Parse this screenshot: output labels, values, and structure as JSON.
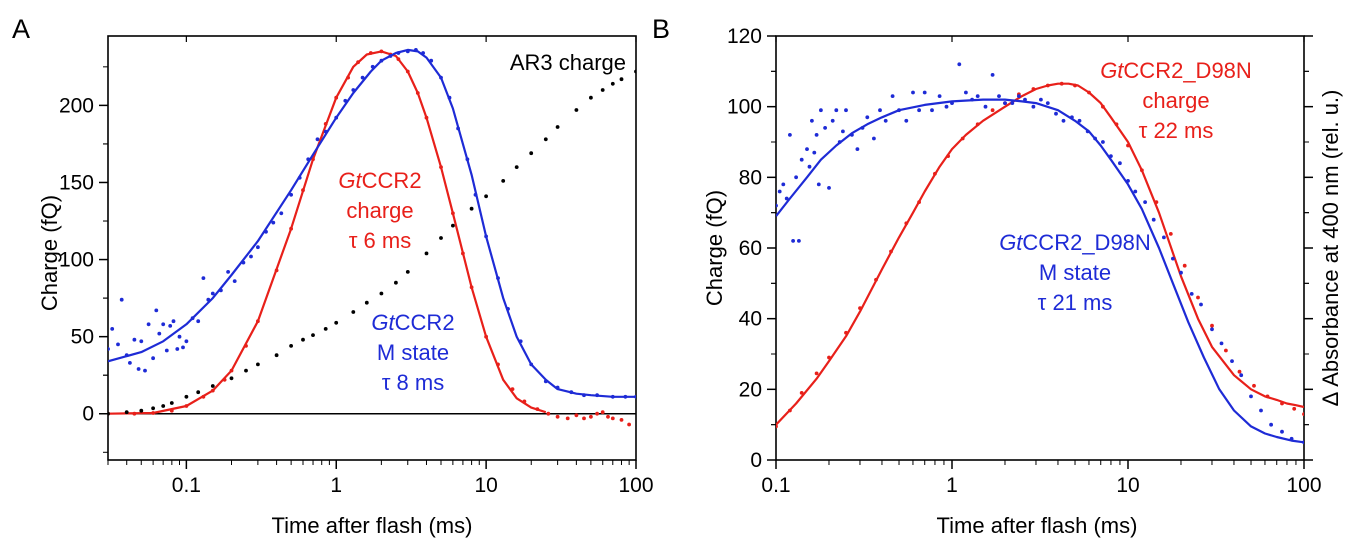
{
  "chart_data": [
    {
      "panel": "A",
      "type": "scatter",
      "xscale": "log",
      "xlim": [
        0.03,
        100
      ],
      "ylim": [
        -30,
        245
      ],
      "xlabel": "Time after flash (ms)",
      "ylabel": "Charge (fQ)",
      "xticks": [
        0.1,
        1,
        10,
        100
      ],
      "xtick_labels": [
        "0.1",
        "1",
        "10",
        "100"
      ],
      "yticks": [
        0,
        50,
        100,
        150,
        200
      ],
      "ytick_labels": [
        "0",
        "50",
        "100",
        "150",
        "200"
      ],
      "grid": false,
      "zero_line": true,
      "annotations": [
        {
          "lines": [
            {
              "italic": "Gt",
              "text": "CCR2"
            },
            {
              "text": "charge"
            },
            {
              "text": "τ 6 ms"
            }
          ],
          "color": "#e8201a"
        },
        {
          "lines": [
            {
              "italic": "Gt",
              "text": "CCR2"
            },
            {
              "text": "M state"
            },
            {
              "text": "τ 8 ms"
            }
          ],
          "color": "#1e2bd6"
        },
        {
          "lines": [
            {
              "text": "AR3 charge"
            }
          ],
          "color": "#000000"
        }
      ],
      "series": [
        {
          "color": "#e8201a",
          "fit": {
            "x": [
              0.03,
              0.06,
              0.1,
              0.15,
              0.2,
              0.3,
              0.5,
              0.7,
              1.0,
              1.3,
              1.6,
              2.0,
              2.5,
              3.0,
              3.5,
              4.0,
              5.0,
              6.0,
              8.0,
              10.0,
              13.0,
              16.0,
              20.0,
              25.0
            ],
            "y": [
              0,
              0.5,
              5,
              15,
              28,
              60,
              120,
              165,
              205,
              225,
              233,
              235,
              232,
              222,
              208,
              192,
              160,
              130,
              82,
              50,
              22,
              10,
              4,
              1
            ]
          },
          "points": {
            "x": [
              0.03,
              0.045,
              0.06,
              0.08,
              0.1,
              0.13,
              0.15,
              0.18,
              0.2,
              0.25,
              0.3,
              0.4,
              0.5,
              0.6,
              0.7,
              0.85,
              1.0,
              1.2,
              1.4,
              1.7,
              2.0,
              2.3,
              2.6,
              3.0,
              3.5,
              4.0,
              5.0,
              6.0,
              7.0,
              8.0,
              10.0,
              12.0,
              15.0,
              18.0,
              22.0,
              26.0,
              30.0,
              35.0,
              40.0,
              45.0,
              50.0,
              55.0,
              60.0,
              65.0,
              70.0,
              80.0,
              90.0
            ],
            "y": [
              0,
              0,
              0.5,
              2,
              5,
              11,
              15,
              22,
              28,
              44,
              60,
              93,
              120,
              145,
              165,
              188,
              205,
              218,
              228,
              234,
              235,
              233,
              230,
              222,
              208,
              192,
              160,
              130,
              104,
              82,
              50,
              32,
              16,
              8,
              3,
              0,
              -2,
              -3,
              -1,
              -3,
              -2,
              0,
              1,
              -2,
              -3,
              -4,
              -7
            ]
          }
        },
        {
          "color": "#1e2bd6",
          "fit": {
            "x": [
              0.03,
              0.05,
              0.07,
              0.1,
              0.15,
              0.2,
              0.3,
              0.5,
              0.7,
              1.0,
              1.3,
              1.7,
              2.0,
              2.5,
              3.0,
              3.5,
              4.0,
              5.0,
              6.0,
              8.0,
              10.0,
              13.0,
              16.0,
              20.0,
              25.0,
              30.0,
              40.0,
              50.0,
              70.0,
              100.0
            ],
            "y": [
              34,
              40,
              47,
              58,
              75,
              90,
              112,
              145,
              168,
              192,
              208,
              222,
              229,
              234,
              236,
              235,
              231,
              218,
              198,
              155,
              115,
              75,
              50,
              32,
              22,
              16,
              13,
              12,
              11,
              11
            ]
          },
          "points": {
            "x": [
              0.03,
              0.032,
              0.035,
              0.037,
              0.04,
              0.042,
              0.045,
              0.048,
              0.05,
              0.053,
              0.056,
              0.06,
              0.063,
              0.066,
              0.07,
              0.074,
              0.078,
              0.082,
              0.087,
              0.09,
              0.095,
              0.1,
              0.11,
              0.12,
              0.13,
              0.14,
              0.15,
              0.17,
              0.19,
              0.21,
              0.24,
              0.27,
              0.3,
              0.34,
              0.38,
              0.43,
              0.5,
              0.57,
              0.65,
              0.75,
              0.85,
              1.0,
              1.15,
              1.3,
              1.5,
              1.75,
              2.0,
              2.3,
              2.6,
              3.0,
              3.4,
              3.8,
              4.3,
              5.0,
              5.7,
              6.5,
              7.5,
              8.5,
              10.0,
              12.0,
              14.0,
              17.0,
              20.0,
              25.0,
              30.0,
              37.0,
              45.0,
              55.0,
              70.0,
              85.0,
              100.0
            ],
            "y": [
              42,
              55,
              45,
              74,
              38,
              33,
              48,
              29,
              47,
              28,
              58,
              36,
              67,
              52,
              58,
              41,
              57,
              60,
              42,
              50,
              43,
              47,
              62,
              60,
              88,
              74,
              78,
              80,
              92,
              86,
              98,
              102,
              108,
              118,
              124,
              130,
              142,
              153,
              165,
              178,
              183,
              192,
              203,
              210,
              218,
              225,
              229,
              232,
              234,
              235,
              236,
              234,
              229,
              218,
              205,
              185,
              165,
              142,
              115,
              88,
              68,
              47,
              32,
              21,
              17,
              14,
              12,
              12,
              11,
              11,
              11
            ]
          }
        },
        {
          "color": "#000000",
          "points": {
            "x": [
              0.03,
              0.04,
              0.05,
              0.06,
              0.07,
              0.08,
              0.1,
              0.12,
              0.15,
              0.2,
              0.25,
              0.3,
              0.4,
              0.5,
              0.6,
              0.7,
              0.85,
              1.0,
              1.3,
              1.6,
              2.0,
              2.5,
              3.0,
              4.0,
              5.0,
              6.0,
              8.0,
              10.0,
              13.0,
              16.0,
              20.0,
              25.0,
              30.0,
              40.0,
              50.0,
              60.0,
              70.0,
              80.0,
              100.0
            ],
            "y": [
              0,
              1,
              2,
              3.5,
              5,
              7,
              11,
              14,
              18,
              23,
              28,
              32,
              38,
              44,
              48,
              51,
              55,
              59,
              66,
              72,
              78,
              85,
              92,
              104,
              114,
              122,
              133,
              141,
              151,
              160,
              169,
              178,
              186,
              197,
              205,
              210,
              214,
              217,
              222
            ]
          }
        }
      ]
    },
    {
      "panel": "B",
      "type": "scatter",
      "xscale": "log",
      "xlim": [
        0.1,
        100
      ],
      "ylim": [
        0,
        120
      ],
      "xlabel": "Time after flash (ms)",
      "ylabel": "Charge (fQ)",
      "ylabel_right": "Δ Absorbance at 400 nm (rel. u.)",
      "xticks": [
        0.1,
        1,
        10,
        100
      ],
      "xtick_labels": [
        "0.1",
        "1",
        "10",
        "100"
      ],
      "yticks": [
        0,
        20,
        40,
        60,
        80,
        100,
        120
      ],
      "ytick_labels": [
        "0",
        "20",
        "40",
        "60",
        "80",
        "100",
        "120"
      ],
      "grid": false,
      "annotations": [
        {
          "lines": [
            {
              "italic": "Gt",
              "text": "CCR2_D98N"
            },
            {
              "text": "charge"
            },
            {
              "text": "τ 22 ms"
            }
          ],
          "color": "#e8201a"
        },
        {
          "lines": [
            {
              "italic": "Gt",
              "text": "CCR2_D98N"
            },
            {
              "text": "M state"
            },
            {
              "text": "τ 21 ms"
            }
          ],
          "color": "#1e2bd6"
        }
      ],
      "series": [
        {
          "color": "#e8201a",
          "fit": {
            "x": [
              0.1,
              0.13,
              0.17,
              0.2,
              0.25,
              0.3,
              0.4,
              0.5,
              0.6,
              0.7,
              0.85,
              1.0,
              1.2,
              1.5,
              2.0,
              2.5,
              3.0,
              3.5,
              4.0,
              4.6,
              5.2,
              6.0,
              7.0,
              8.0,
              10.0,
              12.0,
              15.0,
              20.0,
              25.0,
              30.0,
              40.0,
              50.0,
              60.0,
              70.0,
              80.0,
              90.0,
              100.0
            ],
            "y": [
              10,
              16,
              23,
              28,
              35,
              42,
              54,
              63,
              70,
              76,
              83,
              88,
              92,
              96,
              100,
              103,
              105,
              106,
              106.5,
              106.5,
              106,
              104,
              101,
              97,
              90,
              82,
              70,
              52,
              40,
              32,
              24,
              20,
              18,
              17,
              16,
              15.5,
              15
            ]
          },
          "points": {
            "x": [
              0.1,
              0.12,
              0.14,
              0.17,
              0.2,
              0.25,
              0.3,
              0.37,
              0.45,
              0.55,
              0.65,
              0.8,
              0.95,
              1.15,
              1.4,
              1.7,
              2.0,
              2.4,
              2.9,
              3.5,
              4.2,
              5.0,
              6.0,
              7.2,
              8.6,
              10.0,
              12.0,
              14.5,
              17.5,
              21.0,
              25.0,
              30.0,
              36.0,
              43.0,
              52.0,
              62.0,
              75.0,
              88.0,
              100.0
            ],
            "y": [
              9.5,
              14,
              19,
              24.5,
              29,
              36,
              43,
              51,
              59,
              67,
              73,
              81,
              86,
              91,
              95,
              99,
              101,
              103.5,
              105,
              106,
              106.5,
              106,
              104,
              100,
              95,
              89,
              82,
              73,
              64,
              55,
              46,
              38,
              31,
              25,
              21,
              18,
              16,
              14.5,
              13
            ]
          }
        },
        {
          "color": "#1e2bd6",
          "fit": {
            "x": [
              0.1,
              0.12,
              0.15,
              0.18,
              0.22,
              0.27,
              0.33,
              0.4,
              0.5,
              0.7,
              1.0,
              1.5,
              2.0,
              2.5,
              3.0,
              4.0,
              5.0,
              6.0,
              7.0,
              8.0,
              10.0,
              12.0,
              15.0,
              18.0,
              22.0,
              27.0,
              33.0,
              40.0,
              50.0,
              60.0,
              70.0,
              85.0,
              100.0
            ],
            "y": [
              69,
              74,
              80,
              85,
              89,
              92.5,
              95,
              97,
              99,
              100.5,
              101.5,
              102,
              102,
              101.5,
              101,
              99,
              96,
              93,
              89,
              85,
              78,
              71,
              60,
              50,
              39,
              29,
              20,
              14,
              9.5,
              7.5,
              6.5,
              5.5,
              5
            ]
          },
          "points": {
            "x": [
              0.1,
              0.105,
              0.11,
              0.115,
              0.12,
              0.125,
              0.13,
              0.135,
              0.14,
              0.15,
              0.155,
              0.16,
              0.165,
              0.17,
              0.175,
              0.18,
              0.19,
              0.2,
              0.21,
              0.22,
              0.23,
              0.24,
              0.25,
              0.27,
              0.29,
              0.31,
              0.33,
              0.36,
              0.39,
              0.42,
              0.46,
              0.5,
              0.55,
              0.6,
              0.65,
              0.7,
              0.77,
              0.85,
              0.93,
              1.0,
              1.1,
              1.2,
              1.3,
              1.4,
              1.55,
              1.7,
              1.85,
              2.0,
              2.2,
              2.4,
              2.6,
              2.9,
              3.2,
              3.5,
              3.9,
              4.3,
              4.8,
              5.3,
              5.9,
              6.5,
              7.2,
              8.0,
              9.0,
              10.0,
              11.0,
              12.5,
              14.0,
              16.0,
              18.0,
              20.0,
              23.0,
              26.0,
              30.0,
              34.0,
              39.0,
              44.0,
              50.0,
              57.0,
              65.0,
              75.0,
              85.0,
              100.0
            ],
            "y": [
              72,
              76,
              78,
              74,
              92,
              62,
              80,
              62,
              85,
              88,
              83,
              96,
              87,
              92,
              78,
              99,
              94,
              77,
              96,
              99,
              90,
              93,
              99,
              92,
              88,
              94,
              97,
              91,
              99,
              96,
              103,
              99,
              96,
              104,
              99,
              104,
              99,
              103,
              100,
              101,
              112,
              104,
              102,
              103,
              100,
              109,
              103,
              101,
              101,
              103,
              102,
              100,
              102,
              101,
              98,
              96,
              97,
              96,
              93,
              91,
              90,
              86,
              84,
              79,
              76,
              73,
              68,
              63,
              57,
              53,
              47,
              44,
              37,
              33,
              28,
              24,
              18,
              14,
              10,
              8,
              6,
              5
            ]
          }
        }
      ]
    }
  ],
  "panels": [
    {
      "letter": "A",
      "xlabel": "Time after flash (ms)",
      "ylabel": "Charge (fQ)"
    },
    {
      "letter": "B",
      "xlabel": "Time after flash (ms)",
      "ylabel": "Charge (fQ)",
      "ylabel_right": "Δ Absorbance at 400 nm (rel. u.)"
    }
  ]
}
